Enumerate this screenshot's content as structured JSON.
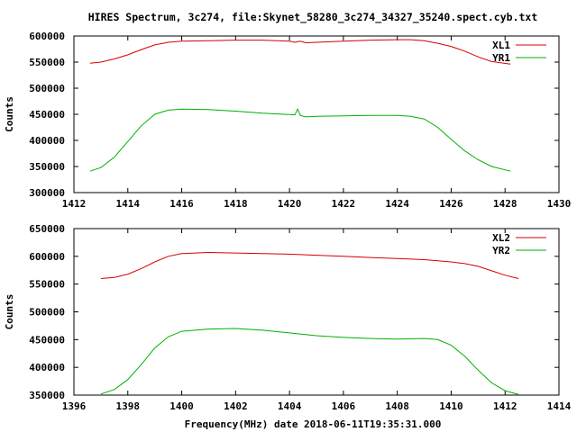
{
  "title": "HIRES Spectrum, 3c274, file:Skynet_58280_3c274_34327_35240.spect.cyb.txt",
  "xlabel": "Frequency(MHz) date 2018-06-11T19:35:31.000",
  "colors": {
    "series1": "#d40000",
    "series2": "#00b000"
  },
  "chart_data": [
    {
      "type": "line",
      "ylabel": "Counts",
      "xlim": [
        1412,
        1430
      ],
      "ylim": [
        300000,
        600000
      ],
      "xticks": [
        1412,
        1414,
        1416,
        1418,
        1420,
        1422,
        1424,
        1426,
        1428,
        1430
      ],
      "yticks": [
        300000,
        350000,
        400000,
        450000,
        500000,
        550000,
        600000
      ],
      "xtick_labels": [
        "1412",
        "1414",
        "1416",
        "1418",
        "1420",
        "1422",
        "1424",
        "1426",
        "1428",
        "1430"
      ],
      "ytick_labels": [
        "300000",
        "350000",
        "400000",
        "450000",
        "500000",
        "550000",
        "600000"
      ],
      "legend_position": "top-right",
      "series": [
        {
          "name": "XL1",
          "x": [
            1412.6,
            1413.0,
            1413.5,
            1414.0,
            1414.5,
            1415.0,
            1415.5,
            1416.0,
            1417.0,
            1418.0,
            1419.0,
            1420.0,
            1420.2,
            1420.4,
            1420.6,
            1421.0,
            1422.0,
            1423.0,
            1424.0,
            1424.5,
            1425.0,
            1425.5,
            1426.0,
            1426.5,
            1427.0,
            1427.5,
            1428.2
          ],
          "y": [
            548000,
            550000,
            556000,
            564000,
            574000,
            583000,
            588000,
            590000,
            591000,
            592000,
            592000,
            590000,
            588000,
            590000,
            587000,
            588000,
            590000,
            592000,
            593000,
            593000,
            591000,
            586000,
            580000,
            571000,
            560000,
            551000,
            546000
          ]
        },
        {
          "name": "YR1",
          "x": [
            1412.6,
            1413.0,
            1413.5,
            1414.0,
            1414.5,
            1415.0,
            1415.5,
            1416.0,
            1417.0,
            1418.0,
            1419.0,
            1419.8,
            1420.2,
            1420.3,
            1420.4,
            1420.6,
            1421.0,
            1422.0,
            1423.0,
            1424.0,
            1424.5,
            1425.0,
            1425.5,
            1426.0,
            1426.5,
            1427.0,
            1427.5,
            1428.2
          ],
          "y": [
            341000,
            348000,
            368000,
            398000,
            428000,
            450000,
            458000,
            460000,
            459000,
            456000,
            452000,
            450000,
            449000,
            460000,
            448000,
            445000,
            446000,
            447000,
            448000,
            448000,
            446000,
            441000,
            425000,
            402000,
            380000,
            363000,
            350000,
            341000
          ]
        }
      ]
    },
    {
      "type": "line",
      "ylabel": "Counts",
      "xlim": [
        1396,
        1414
      ],
      "ylim": [
        350000,
        650000
      ],
      "xticks": [
        1396,
        1398,
        1400,
        1402,
        1404,
        1406,
        1408,
        1410,
        1412,
        1414
      ],
      "yticks": [
        350000,
        400000,
        450000,
        500000,
        550000,
        600000,
        650000
      ],
      "xtick_labels": [
        "1396",
        "1398",
        "1400",
        "1402",
        "1404",
        "1406",
        "1408",
        "1410",
        "1412",
        "1414"
      ],
      "ytick_labels": [
        "350000",
        "400000",
        "450000",
        "500000",
        "550000",
        "600000",
        "650000"
      ],
      "legend_position": "top-right",
      "series": [
        {
          "name": "XL2",
          "x": [
            1397.0,
            1397.5,
            1398.0,
            1398.5,
            1399.0,
            1399.5,
            1400.0,
            1401.0,
            1402.0,
            1403.0,
            1404.0,
            1405.0,
            1406.0,
            1407.0,
            1408.0,
            1409.0,
            1409.5,
            1410.0,
            1410.5,
            1411.0,
            1411.5,
            1412.0,
            1412.5
          ],
          "y": [
            560000,
            562000,
            568000,
            578000,
            590000,
            600000,
            605000,
            607000,
            606000,
            605000,
            604000,
            602000,
            600000,
            598000,
            596000,
            594000,
            592000,
            590000,
            587000,
            582000,
            574000,
            566000,
            560000
          ]
        },
        {
          "name": "YR2",
          "x": [
            1397.0,
            1397.5,
            1398.0,
            1398.5,
            1399.0,
            1399.5,
            1400.0,
            1401.0,
            1402.0,
            1403.0,
            1404.0,
            1405.0,
            1406.0,
            1407.0,
            1408.0,
            1409.0,
            1409.5,
            1410.0,
            1410.5,
            1411.0,
            1411.5,
            1412.0,
            1412.5
          ],
          "y": [
            352000,
            360000,
            378000,
            405000,
            435000,
            455000,
            465000,
            469000,
            470000,
            467000,
            462000,
            457000,
            454000,
            452000,
            451000,
            452000,
            450000,
            440000,
            420000,
            395000,
            372000,
            358000,
            351000
          ]
        }
      ]
    }
  ]
}
